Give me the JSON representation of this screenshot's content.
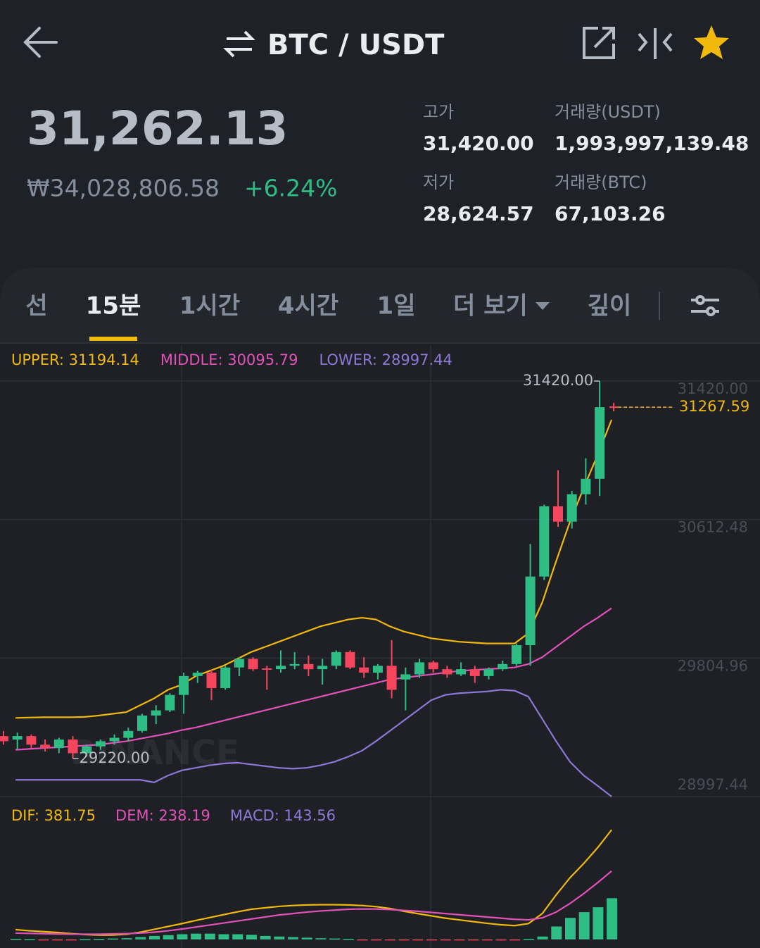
{
  "header": {
    "title": "BTC / USDT"
  },
  "ticker": {
    "price": "31,262.13",
    "price_krw": "₩34,028,806.58",
    "change": "+6.24%",
    "stats": [
      {
        "label": "고가",
        "value": "31,420.00"
      },
      {
        "label": "거래량(USDT)",
        "value": "1,993,997,139.48"
      },
      {
        "label": "저가",
        "value": "28,624.57"
      },
      {
        "label": "거래량(BTC)",
        "value": "67,103.26"
      }
    ]
  },
  "tabs": {
    "items": [
      "선",
      "15분",
      "1시간",
      "4시간",
      "1일",
      "더 보기",
      "깊이"
    ],
    "active": 1
  },
  "chart": {
    "type": "candlestick",
    "watermark": "BINANCE",
    "ylim": [
      28997.44,
      31420
    ],
    "yticks": [
      {
        "value": 31420,
        "label": "31420.00"
      },
      {
        "value": 30612.48,
        "label": "30612.48"
      },
      {
        "value": 29804.96,
        "label": "29804.96"
      },
      {
        "value": 28997.44,
        "label": "28997.44"
      }
    ],
    "up_color": "#2ebd85",
    "down_color": "#f6465d",
    "open": [
      29350,
      29330,
      29350,
      29300,
      29280,
      29330,
      29250,
      29290,
      29320,
      29340,
      29380,
      29470,
      29500,
      29590,
      29700,
      29720,
      29630,
      29750,
      29800,
      29745,
      29740,
      29760,
      29770,
      29740,
      29760,
      29840,
      29750,
      29720,
      29760,
      29680,
      29710,
      29780,
      29740,
      29710,
      29740,
      29700,
      29740,
      29770,
      29880,
      30280,
      30690,
      30600,
      30760,
      30850
    ],
    "high": [
      29380,
      29370,
      29360,
      29330,
      29340,
      29350,
      29300,
      29330,
      29360,
      29400,
      29480,
      29530,
      29600,
      29720,
      29730,
      29740,
      29760,
      29810,
      29810,
      29760,
      29850,
      29840,
      29820,
      29800,
      29850,
      29850,
      29810,
      29770,
      29910,
      29750,
      29800,
      29790,
      29760,
      29780,
      29760,
      29750,
      29790,
      29890,
      30470,
      30700,
      30900,
      30780,
      30970,
      31420
    ],
    "low": [
      29300,
      29270,
      29280,
      29260,
      29250,
      29220,
      29230,
      29270,
      29300,
      29320,
      29370,
      29420,
      29490,
      29480,
      29660,
      29560,
      29620,
      29700,
      29730,
      29620,
      29720,
      29740,
      29700,
      29650,
      29740,
      29740,
      29690,
      29680,
      29570,
      29500,
      29690,
      29720,
      29690,
      29700,
      29660,
      29680,
      29730,
      29760,
      29760,
      30260,
      30570,
      30560,
      30700,
      30750
    ],
    "close": [
      29320,
      29350,
      29300,
      29280,
      29330,
      29250,
      29290,
      29320,
      29340,
      29380,
      29470,
      29500,
      29590,
      29700,
      29720,
      29630,
      29750,
      29800,
      29740,
      29740,
      29760,
      29770,
      29740,
      29760,
      29840,
      29750,
      29720,
      29760,
      29620,
      29710,
      29780,
      29740,
      29710,
      29740,
      29700,
      29740,
      29770,
      29880,
      30280,
      30690,
      30600,
      30760,
      30850,
      31267.59
    ],
    "bands": [
      {
        "label": "UPPER: 31194.14",
        "color": "#f0b90b",
        "values": [
          29456,
          29458,
          29460,
          29460,
          29460,
          29462,
          29470,
          29480,
          29490,
          29530,
          29570,
          29620,
          29650,
          29700,
          29730,
          29760,
          29800,
          29840,
          29870,
          29900,
          29930,
          29960,
          29990,
          30010,
          30030,
          30040,
          30030,
          29990,
          29960,
          29940,
          29920,
          29910,
          29900,
          29895,
          29890,
          29890,
          29890,
          29950,
          30130,
          30370,
          30600,
          30800,
          30990,
          31194.14
        ]
      },
      {
        "label": "MIDDLE: 30095.79",
        "color": "#e052b8",
        "values": [
          29270,
          29275,
          29280,
          29285,
          29290,
          29295,
          29300,
          29310,
          29320,
          29335,
          29350,
          29365,
          29385,
          29400,
          29420,
          29440,
          29460,
          29480,
          29500,
          29520,
          29540,
          29560,
          29580,
          29600,
          29620,
          29640,
          29660,
          29680,
          29690,
          29700,
          29710,
          29720,
          29730,
          29735,
          29740,
          29745,
          29750,
          29770,
          29810,
          29870,
          29930,
          29990,
          30040,
          30095.79
        ]
      },
      {
        "label": "LOWER: 28997.44",
        "color": "#8e77d6",
        "values": [
          29095,
          29095,
          29095,
          29095,
          29095,
          29095,
          29095,
          29095,
          29095,
          29095,
          29080,
          29120,
          29150,
          29165,
          29180,
          29190,
          29195,
          29185,
          29175,
          29165,
          29160,
          29165,
          29180,
          29200,
          29230,
          29265,
          29320,
          29380,
          29440,
          29500,
          29560,
          29590,
          29600,
          29605,
          29610,
          29620,
          29615,
          29580,
          29450,
          29320,
          29200,
          29120,
          29060,
          28997.44
        ]
      }
    ],
    "high_mark": {
      "value": 31420,
      "label": "31420.00"
    },
    "low_mark": {
      "value": 29220,
      "label": "29220.00"
    },
    "last_price": 31267.59,
    "macd": {
      "ylim": [
        -30,
        402
      ],
      "lines": [
        {
          "label": "DIF: 381.75",
          "color": "#f0b90b",
          "values": [
            34,
            30,
            27,
            24,
            20,
            17,
            15,
            15,
            18,
            25,
            35,
            45,
            55,
            66,
            76,
            86,
            96,
            105,
            110,
            115,
            118,
            120,
            121,
            121,
            120,
            118,
            114,
            108,
            98,
            90,
            82,
            74,
            68,
            62,
            56,
            51,
            48,
            55,
            90,
            155,
            215,
            265,
            320,
            381.75
          ]
        },
        {
          "label": "DEM: 238.19",
          "color": "#e052b8",
          "values": [
            22,
            21,
            20,
            19,
            18,
            18,
            18,
            19,
            20,
            22,
            25,
            30,
            36,
            43,
            50,
            57,
            64,
            71,
            78,
            85,
            90,
            95,
            99,
            102,
            105,
            106,
            106,
            104,
            101,
            98,
            94,
            90,
            86,
            82,
            78,
            74,
            70,
            68,
            75,
            95,
            125,
            160,
            198,
            238.19
          ]
        }
      ],
      "histogram": {
        "label": "MACD: 143.56",
        "color": "#8e77d6",
        "values": [
          2,
          1,
          -1,
          -2,
          -1,
          1,
          2,
          3,
          4,
          8,
          12,
          15,
          18,
          20,
          20,
          18,
          18,
          16,
          12,
          10,
          8,
          6,
          4,
          3,
          2,
          -1,
          -2,
          -3,
          -3,
          -3,
          -3,
          -3,
          -3,
          -3,
          -3,
          -2,
          -1,
          2,
          10,
          45,
          75,
          95,
          112,
          143.56
        ]
      }
    }
  }
}
